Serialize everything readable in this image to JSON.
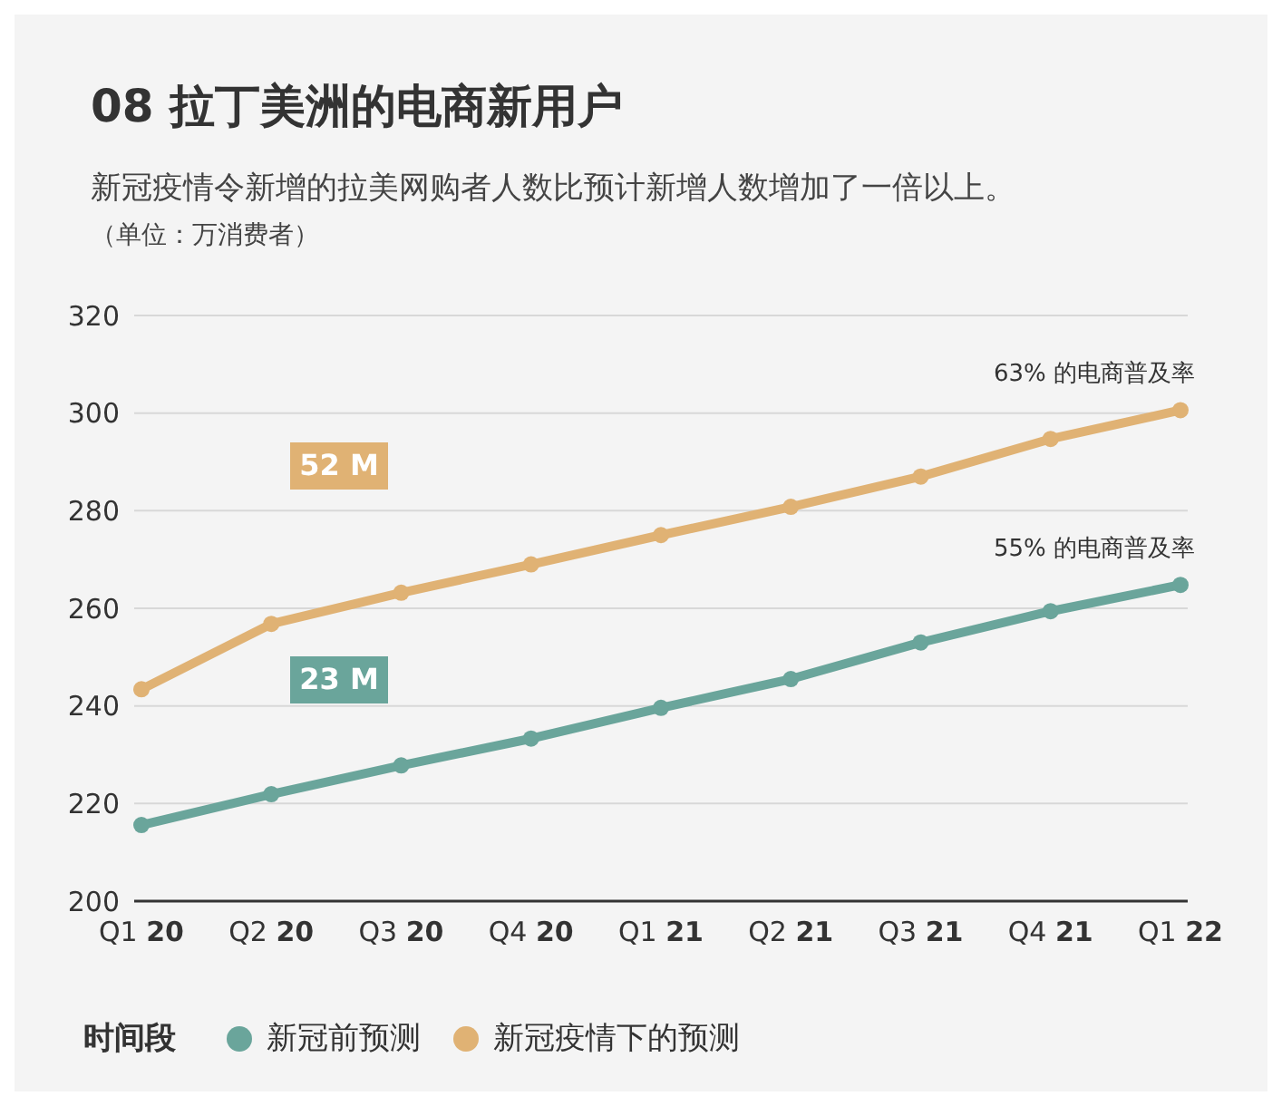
{
  "chart_data": {
    "type": "line",
    "title": "08 拉丁美洲的电商新用户",
    "subtitle": "新冠疫情令新增的拉美网购者人数比预计新增人数增加了一倍以上。",
    "ylabel": "（单位：万消费者）",
    "legend_title": "时间段",
    "categories": [
      "Q1 20",
      "Q2 20",
      "Q3 20",
      "Q4 20",
      "Q1 21",
      "Q2 21",
      "Q3 21",
      "Q4 21",
      "Q1 22"
    ],
    "series": [
      {
        "name": "新冠前预测",
        "color": "#6aa59b",
        "values": [
          215.6,
          221.9,
          227.8,
          233.3,
          239.6,
          245.5,
          253,
          259.4,
          264.8
        ]
      },
      {
        "name": "新冠疫情下的预测",
        "color": "#e0b274",
        "values": [
          243.4,
          256.8,
          263.2,
          269,
          275,
          280.8,
          287,
          294.7,
          300.6
        ]
      }
    ],
    "annotations": [
      "23 M",
      "52 M",
      {
        "text": "55% 的电商普及率",
        "x": "Q1 22",
        "y": 264.8
      },
      {
        "text": "63% 的电商普及率",
        "x": "Q1 22",
        "y": 300.6
      }
    ],
    "ylim": [
      200,
      320
    ],
    "yticks": [
      200,
      220,
      240,
      260,
      280,
      300,
      320
    ],
    "grid": "y",
    "legend": "bottom",
    "marker": "circle",
    "line_style": "solid"
  }
}
